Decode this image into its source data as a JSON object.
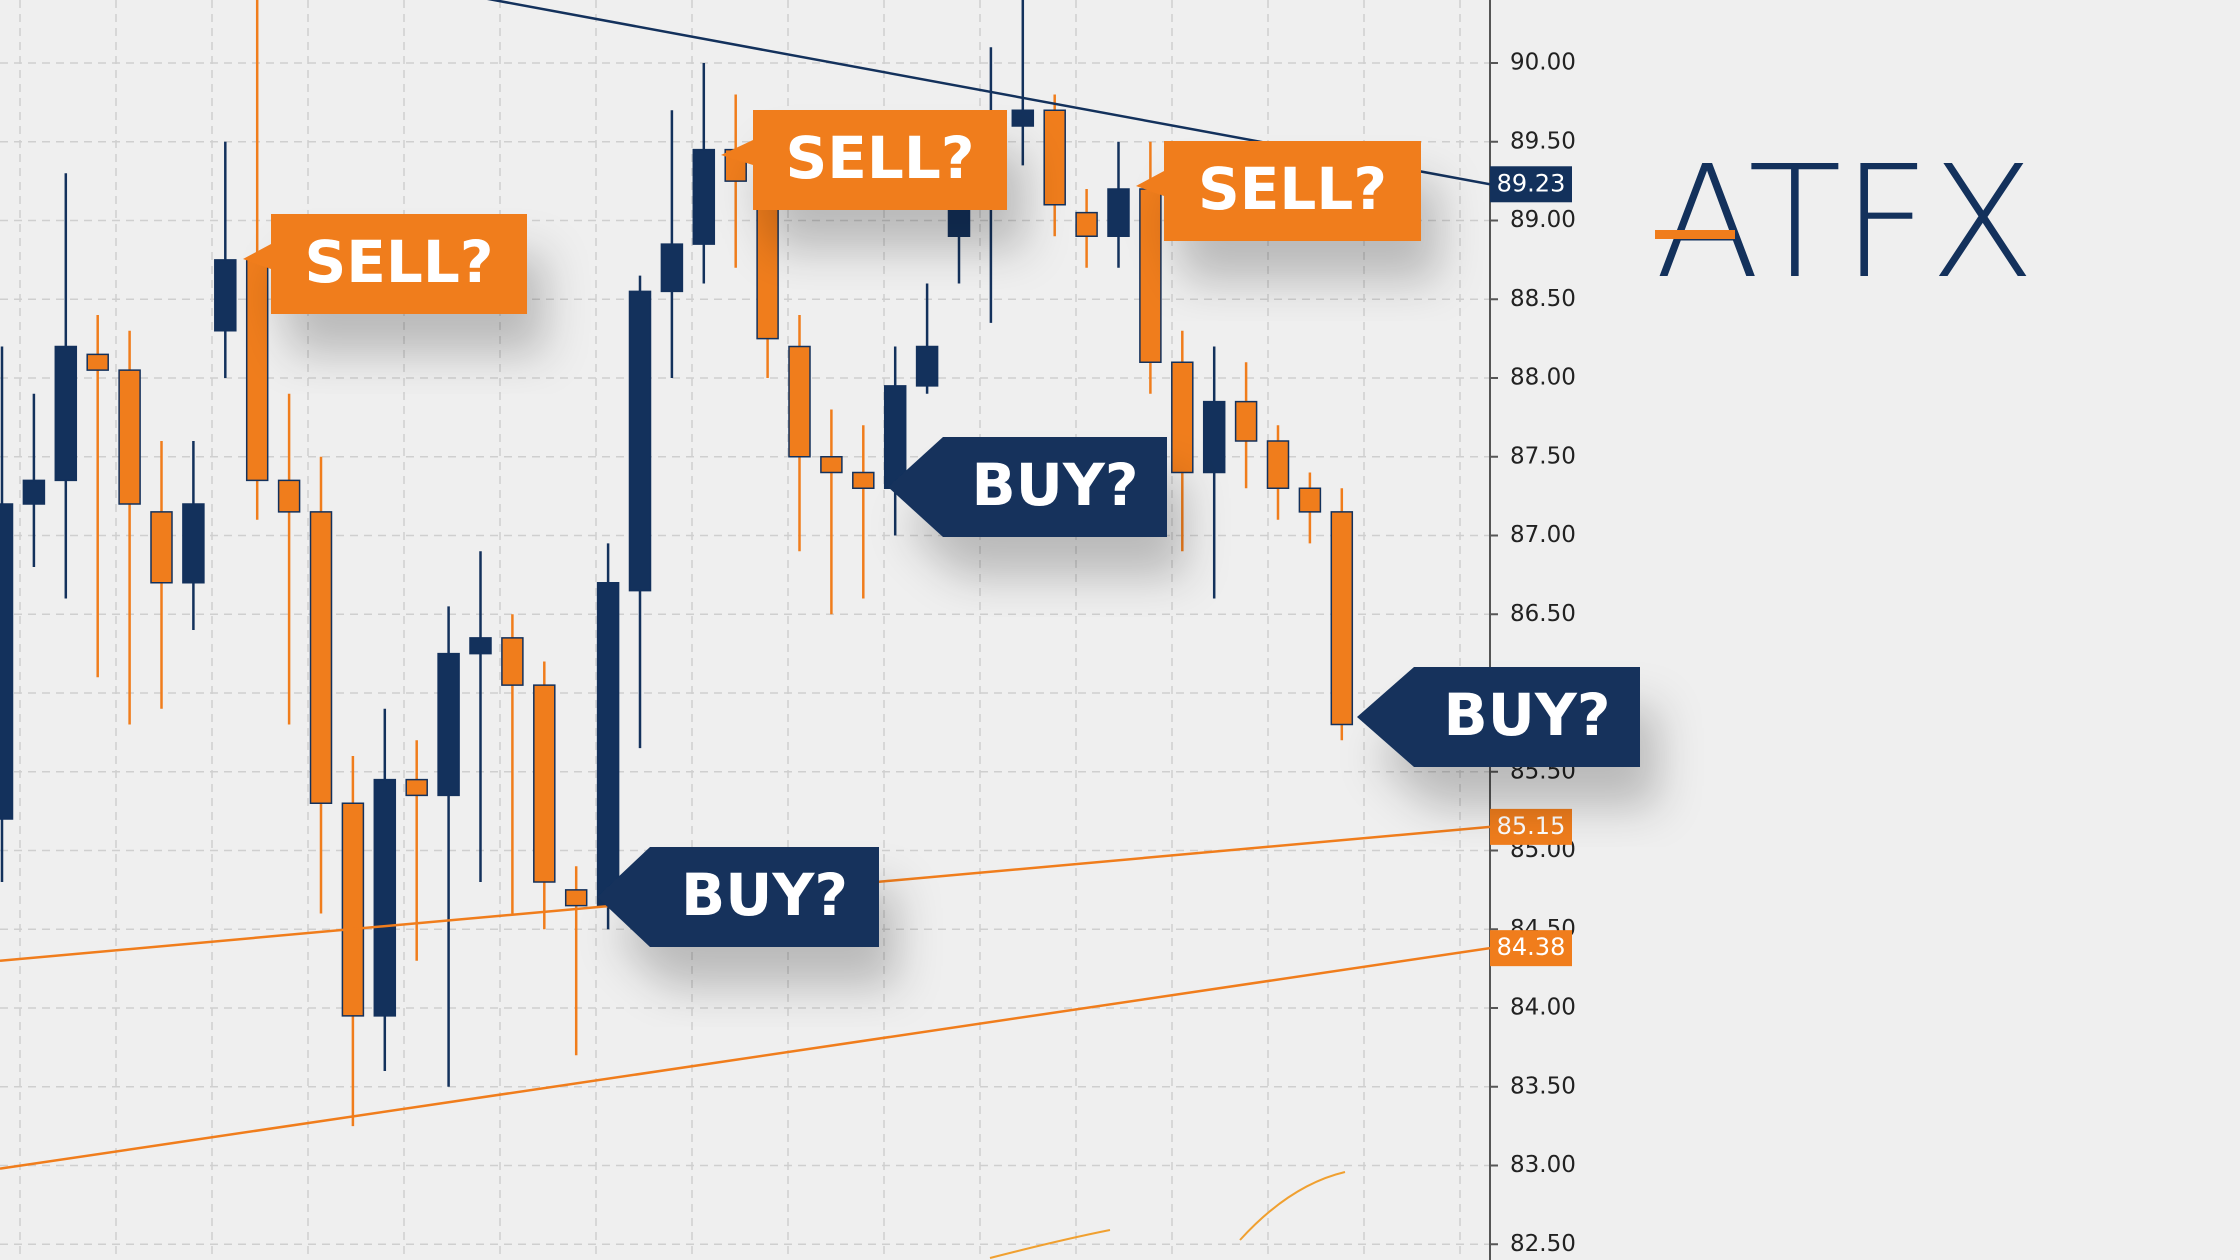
{
  "chart_data": {
    "type": "candlestick",
    "logo": "ATFX",
    "up_color": "#13315c",
    "down_color": "#f07d1c",
    "grid": true,
    "ylim": [
      82.4,
      90.4
    ],
    "yticks": [
      {
        "value": 90,
        "label": "90.00"
      },
      {
        "value": 89.5,
        "label": "89.50"
      },
      {
        "value": 89,
        "label": "89.00"
      },
      {
        "value": 88.5,
        "label": "88.50"
      },
      {
        "value": 88,
        "label": "88.00"
      },
      {
        "value": 87.5,
        "label": "87.50"
      },
      {
        "value": 87,
        "label": "87.00"
      },
      {
        "value": 86.5,
        "label": "86.50"
      },
      {
        "value": 86,
        "label": "86.00"
      },
      {
        "value": 85.5,
        "label": "85.50"
      },
      {
        "value": 85,
        "label": "85.00"
      },
      {
        "value": 84.5,
        "label": "84.50"
      },
      {
        "value": 84,
        "label": "84.00"
      },
      {
        "value": 83.5,
        "label": "83.50"
      },
      {
        "value": 83,
        "label": "83.00"
      },
      {
        "value": 82.5,
        "label": "82.50"
      }
    ],
    "open": [
      85.2,
      87.2,
      87.35,
      88.15,
      88.05,
      87.15,
      86.7,
      88.3,
      88.75,
      87.35,
      87.15,
      85.3,
      83.95,
      85.45,
      85.35,
      86.25,
      86.35,
      86.05,
      84.75,
      84.65,
      86.65,
      88.55,
      88.85,
      89.45,
      89.25,
      88.2,
      87.5,
      87.4,
      87.3,
      87.95,
      88.9,
      89.1,
      89.6,
      89.7,
      89.05,
      88.9,
      89.2,
      88.1,
      87.4,
      87.85,
      87.6,
      87.3,
      87.15
    ],
    "high": [
      88.2,
      87.9,
      89.3,
      88.4,
      88.3,
      87.6,
      87.6,
      89.5,
      90.4,
      87.9,
      87.5,
      85.6,
      85.9,
      85.7,
      86.55,
      86.9,
      86.5,
      86.2,
      84.9,
      86.95,
      88.65,
      89.7,
      90.0,
      89.8,
      89.5,
      88.4,
      87.8,
      87.7,
      88.2,
      88.6,
      89.65,
      90.1,
      90.4,
      89.8,
      89.2,
      89.5,
      89.5,
      88.3,
      88.2,
      88.1,
      87.7,
      87.4,
      87.3
    ],
    "low": [
      84.8,
      86.8,
      86.6,
      86.1,
      85.8,
      85.9,
      86.4,
      88.0,
      87.1,
      85.8,
      84.6,
      83.25,
      83.6,
      84.3,
      83.5,
      84.8,
      84.6,
      84.5,
      83.7,
      84.5,
      85.65,
      88.0,
      88.6,
      88.7,
      88.0,
      86.9,
      86.5,
      86.6,
      87.0,
      87.9,
      88.6,
      88.35,
      89.35,
      88.9,
      88.7,
      88.7,
      87.9,
      86.9,
      86.6,
      87.3,
      87.1,
      86.95,
      85.7
    ],
    "close": [
      87.2,
      87.35,
      88.2,
      88.05,
      87.2,
      86.7,
      87.2,
      88.75,
      87.35,
      87.15,
      85.3,
      83.95,
      85.45,
      85.35,
      86.25,
      86.35,
      86.05,
      84.8,
      84.65,
      86.7,
      88.55,
      88.85,
      89.45,
      89.25,
      88.25,
      87.5,
      87.4,
      87.3,
      87.95,
      88.2,
      89.1,
      89.5,
      89.7,
      89.1,
      88.9,
      89.2,
      88.1,
      87.4,
      87.85,
      87.6,
      87.3,
      87.15,
      85.8
    ],
    "trendlines": [
      {
        "start": 90.98,
        "end": 89.23,
        "color": "#13315c"
      },
      {
        "start": 84.3,
        "end": 85.15,
        "color": "#f07d1c"
      },
      {
        "start": 82.98,
        "end": 84.38,
        "color": "#f07d1c"
      }
    ],
    "annotations": [
      "SELL?",
      "SELL?",
      "SELL?",
      "BUY?",
      "BUY?",
      "BUY?"
    ]
  }
}
